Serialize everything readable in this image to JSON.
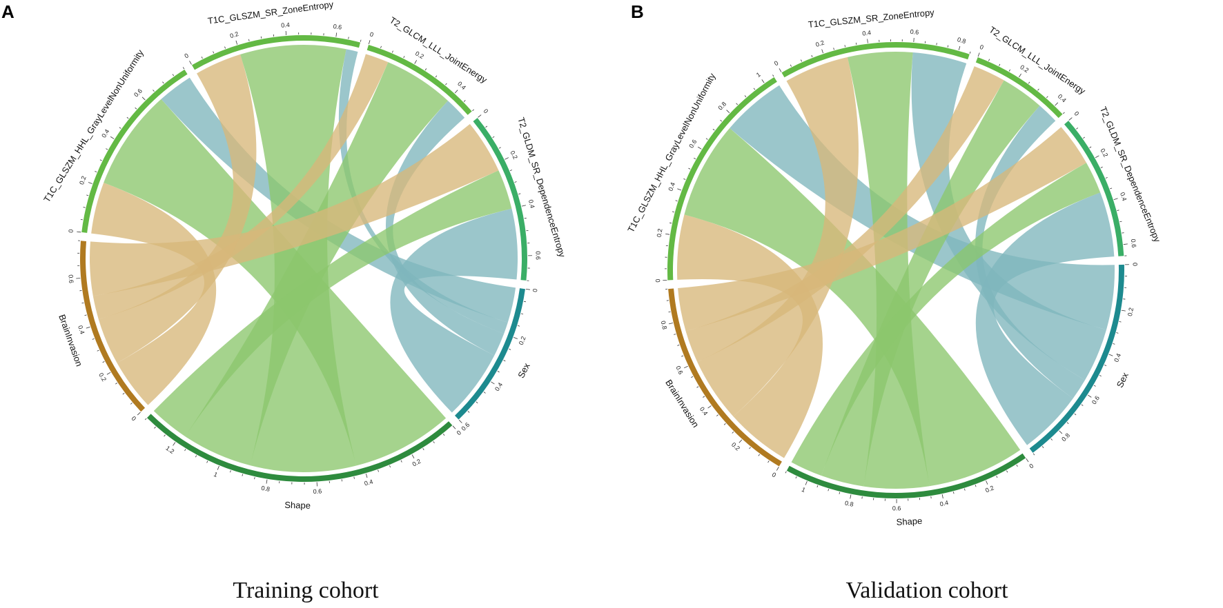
{
  "figure": {
    "panel_labels": [
      "A",
      "B"
    ]
  },
  "chart_data": [
    {
      "type": "chord",
      "panel": "A",
      "title": "Training cohort",
      "sectors": [
        {
          "name": "Shape",
          "role": "target",
          "color": "#2e8b3e",
          "total": 1.35,
          "ticks": [
            0,
            0.2,
            0.4,
            0.6,
            0.8,
            1,
            1.2
          ]
        },
        {
          "name": "BrainInvasion",
          "role": "target",
          "color": "#b07a20",
          "total": 0.75,
          "ticks": [
            0,
            0.2,
            0.4,
            0.6
          ]
        },
        {
          "name": "T1C_GLSZM_HHL_GrayLevelNonUniformity",
          "role": "source",
          "color": "#63b944",
          "total": 0.8,
          "ticks": [
            0,
            0.2,
            0.4,
            0.6
          ]
        },
        {
          "name": "T1C_GLSZM_SR_ZoneEntropy",
          "role": "source",
          "color": "#63b944",
          "total": 0.7,
          "ticks": [
            0,
            0.2,
            0.4,
            0.6
          ]
        },
        {
          "name": "T2_GLCM_LLL_JointEnergy",
          "role": "source",
          "color": "#63b944",
          "total": 0.5,
          "ticks": [
            0,
            0.2,
            0.4
          ]
        },
        {
          "name": "T2_GLDM_SR_DependenceEntropy",
          "role": "source",
          "color": "#3aae66",
          "total": 0.7,
          "ticks": [
            0,
            0.2,
            0.4,
            0.6
          ]
        },
        {
          "name": "Sex",
          "role": "target",
          "color": "#1d8a8f",
          "total": 0.6,
          "ticks": [
            0,
            0.2,
            0.4,
            0.6
          ]
        }
      ],
      "links": [
        {
          "from": "T1C_GLSZM_HHL_GrayLevelNonUniformity",
          "to": "BrainInvasion",
          "value": 0.22
        },
        {
          "from": "T1C_GLSZM_HHL_GrayLevelNonUniformity",
          "to": "Shape",
          "value": 0.43
        },
        {
          "from": "T1C_GLSZM_HHL_GrayLevelNonUniformity",
          "to": "Sex",
          "value": 0.15
        },
        {
          "from": "T1C_GLSZM_SR_ZoneEntropy",
          "to": "BrainInvasion",
          "value": 0.2
        },
        {
          "from": "T1C_GLSZM_SR_ZoneEntropy",
          "to": "Shape",
          "value": 0.45
        },
        {
          "from": "T1C_GLSZM_SR_ZoneEntropy",
          "to": "Sex",
          "value": 0.05
        },
        {
          "from": "T2_GLCM_LLL_JointEnergy",
          "to": "BrainInvasion",
          "value": 0.1
        },
        {
          "from": "T2_GLCM_LLL_JointEnergy",
          "to": "Shape",
          "value": 0.3
        },
        {
          "from": "T2_GLCM_LLL_JointEnergy",
          "to": "Sex",
          "value": 0.1
        },
        {
          "from": "T2_GLDM_SR_DependenceEntropy",
          "to": "BrainInvasion",
          "value": 0.23
        },
        {
          "from": "T2_GLDM_SR_DependenceEntropy",
          "to": "Shape",
          "value": 0.17
        },
        {
          "from": "T2_GLDM_SR_DependenceEntropy",
          "to": "Sex",
          "value": 0.3
        }
      ],
      "link_colors": {
        "BrainInvasion": "#d7b77a",
        "Shape": "#8cc76d",
        "Sex": "#7fb6bd"
      }
    },
    {
      "type": "chord",
      "panel": "B",
      "title": "Validation cohort",
      "sectors": [
        {
          "name": "Shape",
          "role": "target",
          "color": "#2e8b3e",
          "total": 1.1,
          "ticks": [
            0,
            0.2,
            0.4,
            0.6,
            0.8,
            1
          ]
        },
        {
          "name": "BrainInvasion",
          "role": "target",
          "color": "#b07a20",
          "total": 0.95,
          "ticks": [
            0,
            0.2,
            0.4,
            0.6,
            0.8
          ]
        },
        {
          "name": "T1C_GLSZM_HHL_GrayLevelNonUniformity",
          "role": "source",
          "color": "#63b944",
          "total": 1.05,
          "ticks": [
            0,
            0.2,
            0.4,
            0.6,
            0.8,
            1
          ]
        },
        {
          "name": "T1C_GLSZM_SR_ZoneEntropy",
          "role": "source",
          "color": "#63b944",
          "total": 0.85,
          "ticks": [
            0,
            0.2,
            0.4,
            0.6,
            0.8
          ]
        },
        {
          "name": "T2_GLCM_LLL_JointEnergy",
          "role": "source",
          "color": "#63b944",
          "total": 0.45,
          "ticks": [
            0,
            0.2,
            0.4
          ]
        },
        {
          "name": "T2_GLDM_SR_DependenceEntropy",
          "role": "source",
          "color": "#3aae66",
          "total": 0.65,
          "ticks": [
            0,
            0.2,
            0.4,
            0.6
          ]
        },
        {
          "name": "Sex",
          "role": "target",
          "color": "#1d8a8f",
          "total": 0.95,
          "ticks": [
            0,
            0.2,
            0.4,
            0.6,
            0.8
          ]
        }
      ],
      "links": [
        {
          "from": "T1C_GLSZM_HHL_GrayLevelNonUniformity",
          "to": "BrainInvasion",
          "value": 0.3
        },
        {
          "from": "T1C_GLSZM_HHL_GrayLevelNonUniformity",
          "to": "Shape",
          "value": 0.45
        },
        {
          "from": "T1C_GLSZM_HHL_GrayLevelNonUniformity",
          "to": "Sex",
          "value": 0.3
        },
        {
          "from": "T1C_GLSZM_SR_ZoneEntropy",
          "to": "BrainInvasion",
          "value": 0.3
        },
        {
          "from": "T1C_GLSZM_SR_ZoneEntropy",
          "to": "Shape",
          "value": 0.3
        },
        {
          "from": "T1C_GLSZM_SR_ZoneEntropy",
          "to": "Sex",
          "value": 0.25
        },
        {
          "from": "T2_GLCM_LLL_JointEnergy",
          "to": "BrainInvasion",
          "value": 0.15
        },
        {
          "from": "T2_GLCM_LLL_JointEnergy",
          "to": "Shape",
          "value": 0.2
        },
        {
          "from": "T2_GLCM_LLL_JointEnergy",
          "to": "Sex",
          "value": 0.1
        },
        {
          "from": "T2_GLDM_SR_DependenceEntropy",
          "to": "BrainInvasion",
          "value": 0.2
        },
        {
          "from": "T2_GLDM_SR_DependenceEntropy",
          "to": "Shape",
          "value": 0.15
        },
        {
          "from": "T2_GLDM_SR_DependenceEntropy",
          "to": "Sex",
          "value": 0.3
        }
      ],
      "link_colors": {
        "BrainInvasion": "#d7b77a",
        "Shape": "#8cc76d",
        "Sex": "#7fb6bd"
      }
    }
  ]
}
